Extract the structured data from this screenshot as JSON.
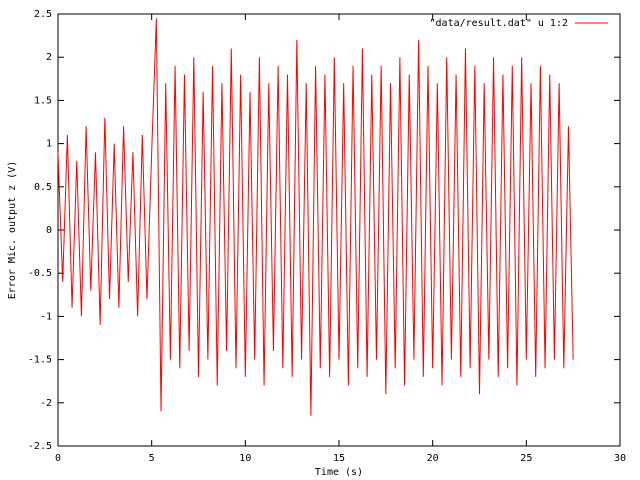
{
  "chart_data": {
    "type": "line",
    "xlabel": "Time (s)",
    "ylabel": "Error Mic. output z (V)",
    "x": [
      0,
      0.25,
      0.5,
      0.75,
      1,
      1.25,
      1.5,
      1.75,
      2,
      2.25,
      2.5,
      2.75,
      3,
      3.25,
      3.5,
      3.75,
      4,
      4.25,
      4.5,
      4.75,
      5,
      5.25,
      5.5,
      5.75,
      6,
      6.25,
      6.5,
      6.75,
      7,
      7.25,
      7.5,
      7.75,
      8,
      8.25,
      8.5,
      8.75,
      9,
      9.25,
      9.5,
      9.75,
      10,
      10.25,
      10.5,
      10.75,
      11,
      11.25,
      11.5,
      11.75,
      12,
      12.25,
      12.5,
      12.75,
      13,
      13.25,
      13.5,
      13.75,
      14,
      14.25,
      14.5,
      14.75,
      15,
      15.25,
      15.5,
      15.75,
      16,
      16.25,
      16.5,
      16.75,
      17,
      17.25,
      17.5,
      17.75,
      18,
      18.25,
      18.5,
      18.75,
      19,
      19.25,
      19.5,
      19.75,
      20,
      20.25,
      20.5,
      20.75,
      21,
      21.25,
      21.5,
      21.75,
      22,
      22.25,
      22.5,
      22.75,
      23,
      23.25,
      23.5,
      23.75,
      24,
      24.25,
      24.5,
      24.75,
      25,
      25.25,
      25.5,
      25.75,
      26,
      26.25,
      26.5,
      26.75,
      27,
      27.25,
      27.5
    ],
    "series": [
      {
        "name": "\"data/result.dat\" u 1:2",
        "color": "#ff0000",
        "values": [
          0.9,
          -0.6,
          1.1,
          -0.9,
          0.8,
          -1.0,
          1.2,
          -0.7,
          0.9,
          -1.1,
          1.3,
          -0.8,
          1.0,
          -0.9,
          1.2,
          -0.6,
          0.9,
          -1.0,
          1.1,
          -0.8,
          0.9,
          2.45,
          -2.1,
          1.7,
          -1.5,
          1.9,
          -1.6,
          1.8,
          -1.4,
          2.0,
          -1.7,
          1.6,
          -1.5,
          1.9,
          -1.8,
          1.7,
          -1.4,
          2.1,
          -1.6,
          1.8,
          -1.7,
          1.6,
          -1.5,
          2.0,
          -1.8,
          1.7,
          -1.4,
          1.9,
          -1.6,
          1.8,
          -1.7,
          2.2,
          -1.5,
          1.7,
          -2.15,
          1.9,
          -1.6,
          1.8,
          -1.7,
          2.0,
          -1.5,
          1.7,
          -1.8,
          1.9,
          -1.6,
          2.1,
          -1.7,
          1.8,
          -1.5,
          1.9,
          -1.9,
          1.7,
          -1.6,
          2.0,
          -1.8,
          1.8,
          -1.5,
          2.2,
          -1.7,
          1.9,
          -1.6,
          1.7,
          -1.8,
          2.0,
          -1.5,
          1.8,
          -1.7,
          2.1,
          -1.6,
          1.9,
          -1.9,
          1.7,
          -1.5,
          2.0,
          -1.7,
          1.8,
          -1.6,
          1.9,
          -1.8,
          2.0,
          -1.5,
          1.7,
          -1.7,
          1.9,
          -1.6,
          1.8,
          -1.5,
          1.7,
          -1.6,
          1.2,
          -1.5
        ]
      }
    ],
    "xlim": [
      0,
      30
    ],
    "xticks": [
      0,
      5,
      10,
      15,
      20,
      25,
      30
    ],
    "ylim": [
      -2.5,
      2.5
    ],
    "yticks": [
      -2.5,
      -2,
      -1.5,
      -1,
      -0.5,
      0,
      0.5,
      1,
      1.5,
      2,
      2.5
    ],
    "grid": false,
    "legend": "top-right"
  }
}
